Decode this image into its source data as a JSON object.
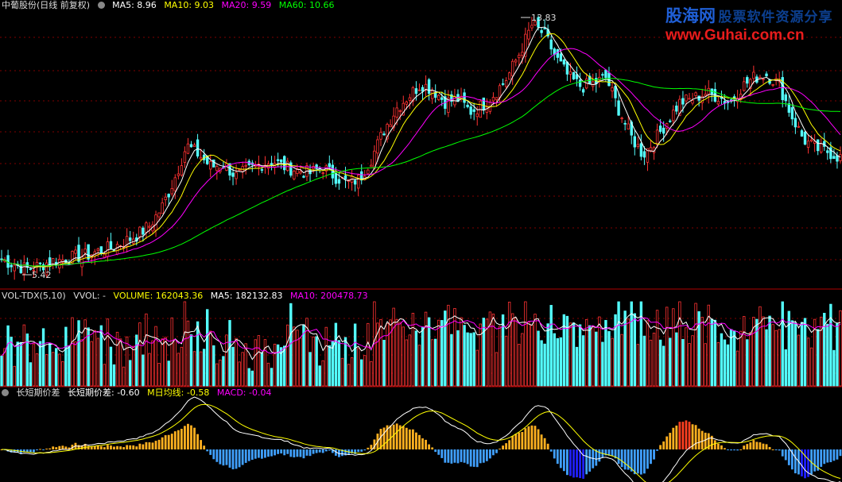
{
  "header": {
    "stock_name": "中葡股份(日线 前复权)",
    "ma5": "MA5: 8.96",
    "ma10": "MA10: 9.03",
    "ma20": "MA20: 9.59",
    "ma60": "MA60: 10.66"
  },
  "watermark": {
    "brand": "股海网",
    "slogan": "股票软件资源分享",
    "url": "www.Guhai.com.cn"
  },
  "volume_header": {
    "indicator": "VOL-TDX(5,10)",
    "vvol": "VVOL: -",
    "volume": "VOLUME: 162043.36",
    "ma5": "MA5: 182132.83",
    "ma10": "MA10: 200478.73"
  },
  "macd_header": {
    "indicator": "长短期价差",
    "diff": "长短期价差: -0.60",
    "dea": "M日均线: -0.58",
    "macd": "MACD: -0.04"
  },
  "colors": {
    "up": "#ff3232",
    "down": "#54ffff",
    "ma5": "#ffffff",
    "ma10": "#ffff00",
    "ma20": "#ff00ff",
    "ma60": "#00ff00",
    "grid": "#800000"
  },
  "chart_data": [
    {
      "type": "candlestick",
      "title": "中葡股份(日线 前复权)",
      "ylim": [
        5.0,
        14.0
      ],
      "annotations": [
        "5.42",
        "13.83"
      ],
      "low_point": 5.42,
      "high_point": 13.83,
      "series_names": [
        "MA5",
        "MA10",
        "MA20",
        "MA60"
      ],
      "close_anchors": [
        5.9,
        5.75,
        5.6,
        5.7,
        5.85,
        5.9,
        6.0,
        6.05,
        6.2,
        6.3,
        6.5,
        6.7,
        7.0,
        7.6,
        8.5,
        9.6,
        9.3,
        8.9,
        9.0,
        8.6,
        8.8,
        9.0,
        9.1,
        8.9,
        8.8,
        8.7,
        8.9,
        8.6,
        8.4,
        8.5,
        9.2,
        10.1,
        10.8,
        11.2,
        11.6,
        11.4,
        11.0,
        11.1,
        10.7,
        10.9,
        11.3,
        11.8,
        12.6,
        13.5,
        13.2,
        12.4,
        11.8,
        11.5,
        11.6,
        11.8,
        10.8,
        9.9,
        9.3,
        9.8,
        10.4,
        11.0,
        11.1,
        11.3,
        11.2,
        11.0,
        11.5,
        11.8,
        11.9,
        11.6,
        10.6,
        9.8,
        9.5,
        9.4,
        9.2
      ]
    },
    {
      "type": "bar",
      "title": "VOL-TDX(5,10)",
      "series_names": [
        "VOLUME",
        "MA5",
        "MA10"
      ],
      "last_values": {
        "VOLUME": 162043.36,
        "MA5": 182132.83,
        "MA10": 200478.73
      }
    },
    {
      "type": "bar",
      "title": "长短期价差",
      "series_names": [
        "长短期价差",
        "M日均线",
        "MACD"
      ],
      "last_values": {
        "长短期价差": -0.6,
        "M日均线": -0.58,
        "MACD": -0.04
      }
    }
  ]
}
